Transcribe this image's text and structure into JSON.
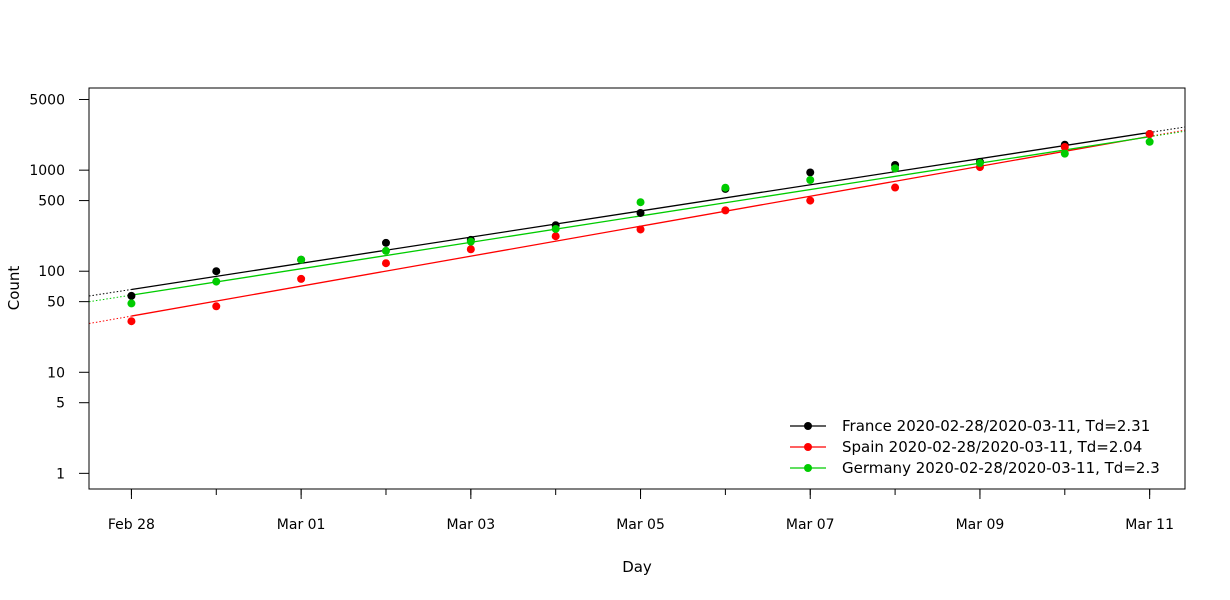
{
  "chart_data": {
    "type": "scatter",
    "xlabel": "Day",
    "ylabel": "Count",
    "y_scale": "log",
    "ylim": [
      0.7,
      6500
    ],
    "xlim": [
      "2020-02-27T12:00",
      "2020-03-11T10:00"
    ],
    "x_ticks": [
      {
        "date": "2020-02-28",
        "label": "Feb 28"
      },
      {
        "date": "2020-03-01",
        "label": "Mar 01"
      },
      {
        "date": "2020-03-03",
        "label": "Mar 03"
      },
      {
        "date": "2020-03-05",
        "label": "Mar 05"
      },
      {
        "date": "2020-03-07",
        "label": "Mar 07"
      },
      {
        "date": "2020-03-09",
        "label": "Mar 09"
      },
      {
        "date": "2020-03-11",
        "label": "Mar 11"
      }
    ],
    "y_ticks": [
      {
        "value": 1,
        "label": "1"
      },
      {
        "value": 5,
        "label": "5"
      },
      {
        "value": 10,
        "label": "10"
      },
      {
        "value": 50,
        "label": "50"
      },
      {
        "value": 100,
        "label": "100"
      },
      {
        "value": 500,
        "label": "500"
      },
      {
        "value": 1000,
        "label": "1000"
      },
      {
        "value": 5000,
        "label": "5000"
      }
    ],
    "legend_position": "bottom-right",
    "x": [
      "2020-02-28",
      "2020-02-29",
      "2020-03-01",
      "2020-03-02",
      "2020-03-03",
      "2020-03-04",
      "2020-03-05",
      "2020-03-06",
      "2020-03-07",
      "2020-03-08",
      "2020-03-09",
      "2020-03-10",
      "2020-03-11"
    ],
    "series": [
      {
        "name": "France 2020-02-28/2020-03-11, Td=2.31",
        "color": "#000000",
        "values": [
          57,
          100,
          130,
          191,
          204,
          285,
          377,
          653,
          949,
          1126,
          1209,
          1784,
          2281
        ],
        "fit": {
          "start": "2020-02-28",
          "end": "2020-03-11",
          "start_value": 66,
          "end_value": 2360
        }
      },
      {
        "name": "Spain 2020-02-28/2020-03-11, Td=2.04",
        "color": "#ff0000",
        "values": [
          32,
          45,
          84,
          120,
          165,
          222,
          259,
          400,
          500,
          673,
          1073,
          1695,
          2277
        ],
        "fit": {
          "start": "2020-02-28",
          "end": "2020-03-11",
          "start_value": 36,
          "end_value": 2160
        }
      },
      {
        "name": "Germany 2020-02-28/2020-03-11, Td=2.3",
        "color": "#00cc00",
        "values": [
          48,
          79,
          130,
          159,
          196,
          262,
          482,
          670,
          799,
          1040,
          1176,
          1457,
          1908
        ],
        "fit": {
          "start": "2020-02-28",
          "end": "2020-03-11",
          "start_value": 58,
          "end_value": 2140
        }
      }
    ]
  }
}
